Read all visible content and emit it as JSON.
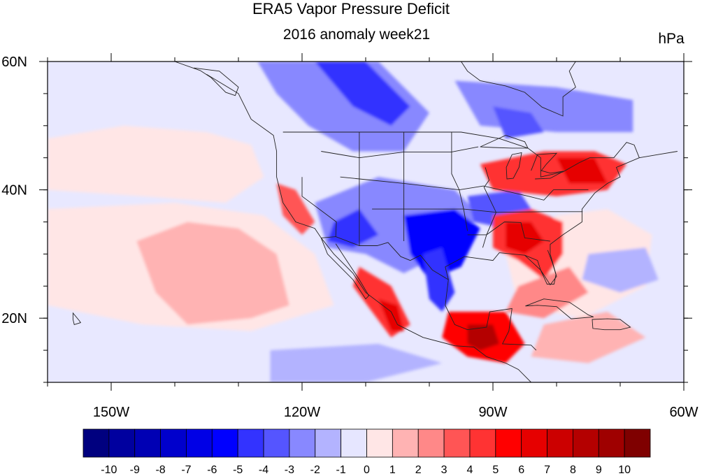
{
  "title": "ERA5 Vapor Pressure Deficit",
  "subtitle": "2016 anomaly week21",
  "units": "hPa",
  "map": {
    "lon_range": [
      -160,
      -60
    ],
    "lat_range": [
      10,
      60
    ],
    "lon_ticks": [
      {
        "value": -150,
        "label": "150W"
      },
      {
        "value": -120,
        "label": "120W"
      },
      {
        "value": -90,
        "label": "90W"
      },
      {
        "value": -60,
        "label": "60W"
      }
    ],
    "lat_ticks": [
      {
        "value": 60,
        "label": "60N"
      },
      {
        "value": 40,
        "label": "40N"
      },
      {
        "value": 20,
        "label": "20N"
      }
    ]
  },
  "colorbar": {
    "levels": [
      "-10",
      "-9",
      "-8",
      "-7",
      "-6",
      "-5",
      "-4",
      "-3",
      "-2",
      "-1",
      "0",
      "1",
      "2",
      "3",
      "4",
      "5",
      "6",
      "7",
      "8",
      "9",
      "10"
    ],
    "colors": [
      "#00007f",
      "#00009f",
      "#0000b4",
      "#0000cc",
      "#0000e6",
      "#0000ff",
      "#3333ff",
      "#5555ff",
      "#8888ff",
      "#b3b3ff",
      "#e6e6ff",
      "#ffe6e6",
      "#ffb3b3",
      "#ff8888",
      "#ff5555",
      "#ff3333",
      "#ff0000",
      "#e60000",
      "#cc0000",
      "#b40000",
      "#9f0000",
      "#7f0000"
    ]
  },
  "chart_data": {
    "type": "heatmap",
    "title": "ERA5 Vapor Pressure Deficit",
    "subtitle": "2016 anomaly week21",
    "units": "hPa",
    "xlim": [
      -160,
      -60
    ],
    "ylim": [
      10,
      60
    ],
    "colorbar_range": [
      -10,
      10
    ],
    "features": [
      {
        "lon": -97,
        "lat": 33,
        "value": -7
      },
      {
        "lon": -102,
        "lat": 26,
        "value": -6
      },
      {
        "lon": -110,
        "lat": 37,
        "value": -4
      },
      {
        "lon": -113,
        "lat": 33,
        "value": -5
      },
      {
        "lon": -115,
        "lat": 57,
        "value": -5
      },
      {
        "lon": -100,
        "lat": 53,
        "value": -4
      },
      {
        "lon": -84,
        "lat": 50,
        "value": -3
      },
      {
        "lon": -88,
        "lat": 36,
        "value": -4
      },
      {
        "lon": -83,
        "lat": 33,
        "value": 6
      },
      {
        "lon": -76,
        "lat": 42,
        "value": 6
      },
      {
        "lon": -86,
        "lat": 42,
        "value": 5
      },
      {
        "lon": -92,
        "lat": 17,
        "value": 9
      },
      {
        "lon": -106,
        "lat": 21,
        "value": 6
      },
      {
        "lon": -122,
        "lat": 38,
        "value": 4
      },
      {
        "lon": -82,
        "lat": 26,
        "value": 3
      },
      {
        "lon": -128,
        "lat": 26,
        "value": 1
      },
      {
        "lon": -145,
        "lat": 35,
        "value": 1
      },
      {
        "lon": -150,
        "lat": 47,
        "value": 0.5
      },
      {
        "lon": -118,
        "lat": 14,
        "value": -2
      },
      {
        "lon": -70,
        "lat": 28,
        "value": -2
      }
    ]
  }
}
